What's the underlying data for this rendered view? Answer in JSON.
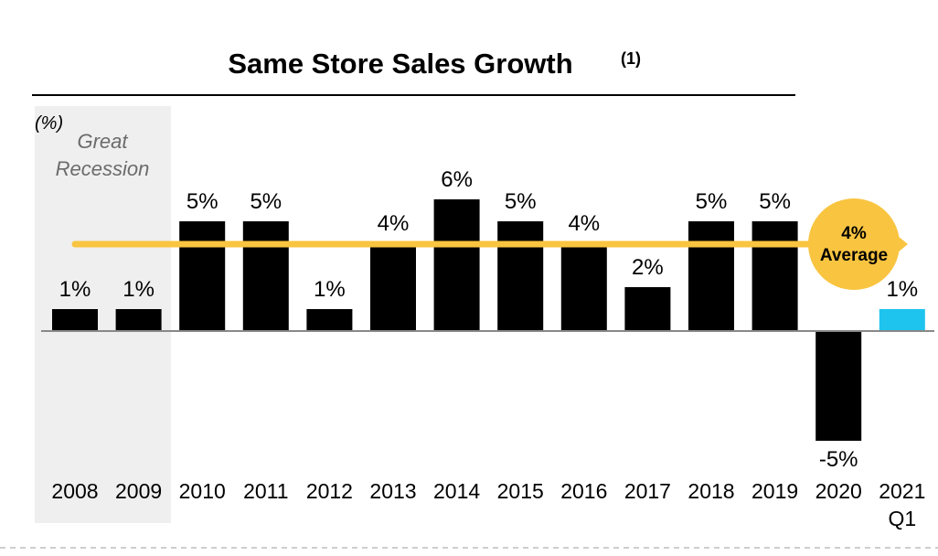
{
  "chart_data": {
    "type": "bar",
    "title": "Same Store Sales Growth",
    "title_superscript": "(1)",
    "unit_label": "(%)",
    "categories": [
      {
        "line1": "2008",
        "line2": ""
      },
      {
        "line1": "2009",
        "line2": ""
      },
      {
        "line1": "2010",
        "line2": ""
      },
      {
        "line1": "2011",
        "line2": ""
      },
      {
        "line1": "2012",
        "line2": ""
      },
      {
        "line1": "2013",
        "line2": ""
      },
      {
        "line1": "2014",
        "line2": ""
      },
      {
        "line1": "2015",
        "line2": ""
      },
      {
        "line1": "2016",
        "line2": ""
      },
      {
        "line1": "2017",
        "line2": ""
      },
      {
        "line1": "2018",
        "line2": ""
      },
      {
        "line1": "2019",
        "line2": ""
      },
      {
        "line1": "2020",
        "line2": ""
      },
      {
        "line1": "2021",
        "line2": "Q1"
      }
    ],
    "values": [
      1,
      1,
      5,
      5,
      1,
      4,
      6,
      5,
      4,
      2,
      5,
      5,
      -5,
      1
    ],
    "data_labels": [
      "1%",
      "1%",
      "5%",
      "5%",
      "1%",
      "4%",
      "6%",
      "5%",
      "4%",
      "2%",
      "5%",
      "5%",
      "-5%",
      "1%"
    ],
    "ylim": [
      -5.5,
      6.5
    ],
    "grid": false,
    "legend": "none",
    "highlight_period": {
      "label_line1": "Great",
      "label_line2": "Recession",
      "categories": [
        "2008",
        "2009"
      ]
    },
    "average": {
      "value": 4,
      "label_line1": "4%",
      "label_line2": "Average"
    },
    "colors": {
      "bar": "#000000",
      "bar_highlight": "#1ec3ee",
      "average": "#f9c440",
      "recession_shade": "#efefef",
      "recession_text": "#6b6b6b",
      "axis": "#888888"
    },
    "highlighted_category_index": 13
  }
}
